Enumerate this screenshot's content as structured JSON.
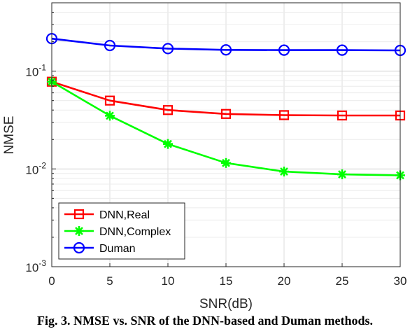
{
  "chart_data": {
    "type": "line",
    "xlabel": "SNR(dB)",
    "ylabel": "NMSE",
    "x": [
      0,
      5,
      10,
      15,
      20,
      25,
      30
    ],
    "xlim": [
      0,
      30
    ],
    "ylim": [
      0.001,
      0.5
    ],
    "yscale": "log",
    "x_ticks": [
      "0",
      "5",
      "10",
      "15",
      "20",
      "25",
      "30"
    ],
    "y_ticks": [
      {
        "base": "10",
        "exp": "-3",
        "value": 0.001
      },
      {
        "base": "10",
        "exp": "-2",
        "value": 0.01
      },
      {
        "base": "10",
        "exp": "-1",
        "value": 0.1
      }
    ],
    "grid": true,
    "legend_position": "bottom-left",
    "series": [
      {
        "name": "DNN,Real",
        "color": "#ff0000",
        "marker": "square",
        "values": [
          0.078,
          0.05,
          0.04,
          0.0365,
          0.0355,
          0.0352,
          0.0352
        ]
      },
      {
        "name": "DNN,Complex",
        "color": "#00ff00",
        "marker": "star",
        "values": [
          0.078,
          0.035,
          0.018,
          0.0115,
          0.0094,
          0.0088,
          0.0086
        ]
      },
      {
        "name": "Duman",
        "color": "#0000ff",
        "marker": "circle",
        "values": [
          0.215,
          0.183,
          0.17,
          0.165,
          0.164,
          0.164,
          0.163
        ]
      }
    ]
  },
  "caption": "Fig. 3. NMSE vs. SNR of the DNN-based and Duman methods."
}
